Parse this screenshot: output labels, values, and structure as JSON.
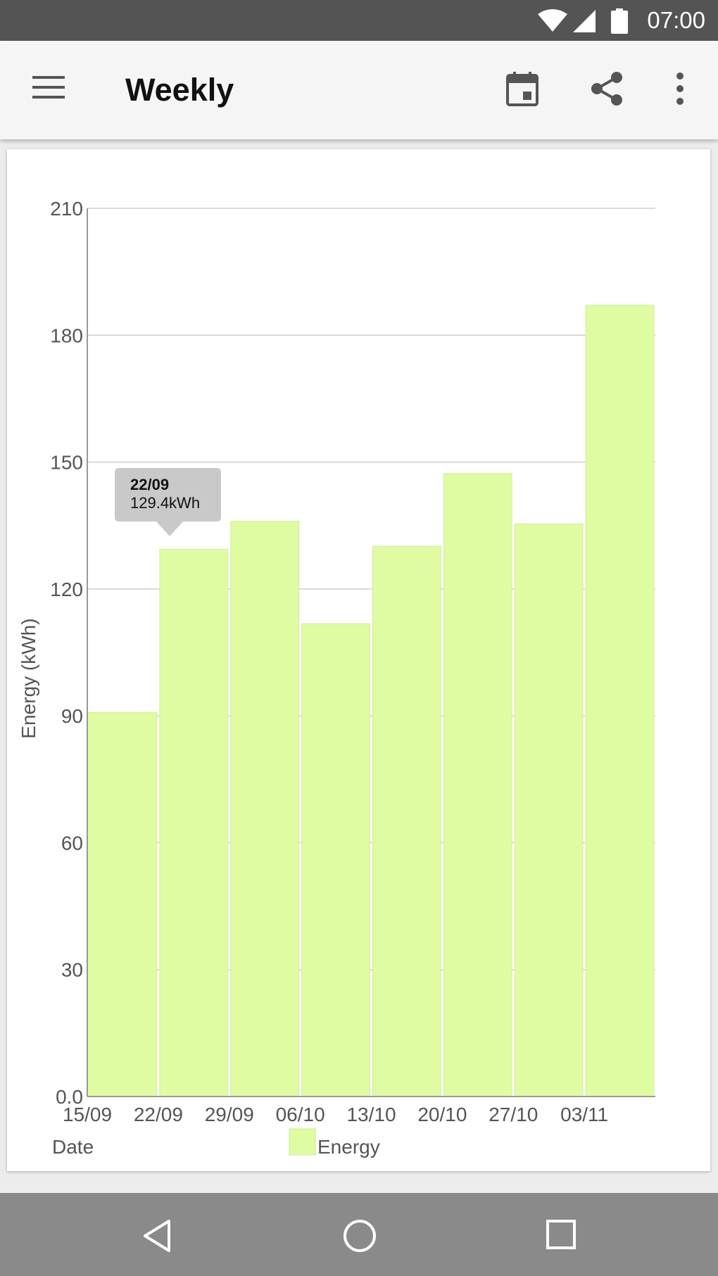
{
  "status_bar": {
    "time": "07:00"
  },
  "app_bar": {
    "title": "Weekly",
    "menu_icon": "hamburger-menu-icon",
    "calendar_icon": "calendar-icon",
    "share_icon": "share-icon",
    "overflow_icon": "more-vert-icon"
  },
  "chart_data": {
    "type": "bar",
    "title": "",
    "xlabel": "Date",
    "ylabel": "Energy (kWh)",
    "ylim": [
      0,
      210
    ],
    "yticks": [
      "0.0",
      "30",
      "60",
      "90",
      "120",
      "150",
      "180",
      "210"
    ],
    "categories": [
      "15/09",
      "22/09",
      "29/09",
      "06/10",
      "13/10",
      "20/10",
      "27/10",
      "03/11"
    ],
    "series": [
      {
        "name": "Energy",
        "values": [
          90.8,
          129.4,
          136.0,
          111.8,
          130.1,
          147.3,
          135.4,
          187.1
        ],
        "color": "#e0fca3"
      }
    ],
    "grid": true,
    "legend_position": "bottom",
    "tooltip": {
      "date": "22/09",
      "value": "129.4kWh"
    }
  },
  "nav_bar": {
    "back_icon": "back-triangle-icon",
    "home_icon": "home-circle-icon",
    "recents_icon": "recents-square-icon"
  }
}
